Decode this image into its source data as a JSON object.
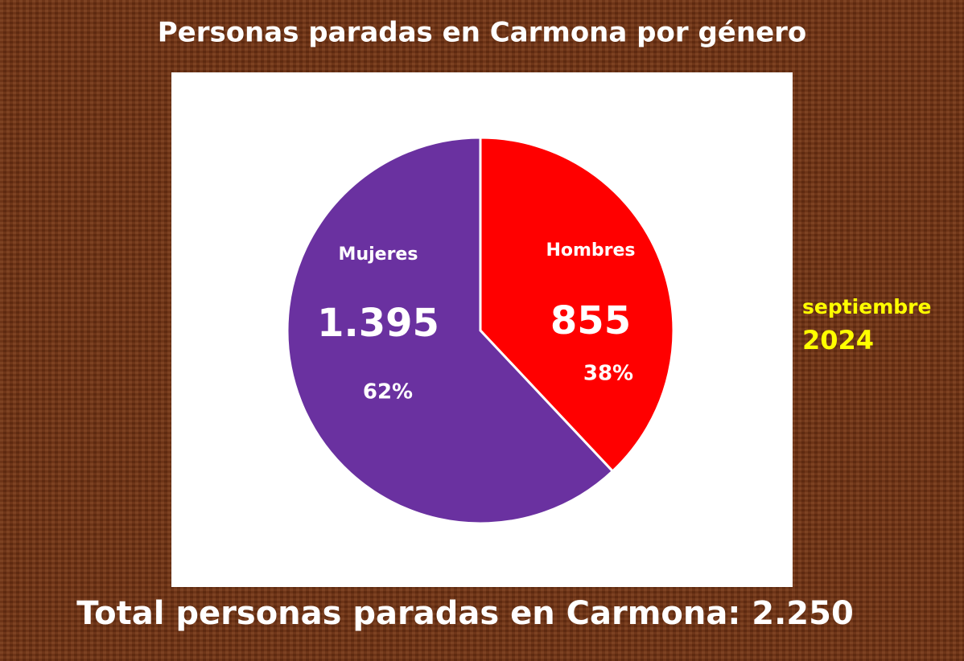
{
  "chart_data": {
    "type": "pie",
    "title": "Personas paradas en Carmona por género",
    "categories": [
      "Hombres",
      "Mujeres"
    ],
    "values": [
      855,
      1395
    ],
    "value_labels": [
      "855",
      "1.395"
    ],
    "percentages": [
      38,
      62
    ],
    "percentage_labels": [
      "38%",
      "62%"
    ],
    "colors": [
      "#ff0000",
      "#6a31a0"
    ],
    "period": {
      "month": "septiembre",
      "year": "2024"
    },
    "total_caption": "Total personas paradas en Carmona:",
    "total": 2250,
    "total_label": "2.250"
  }
}
